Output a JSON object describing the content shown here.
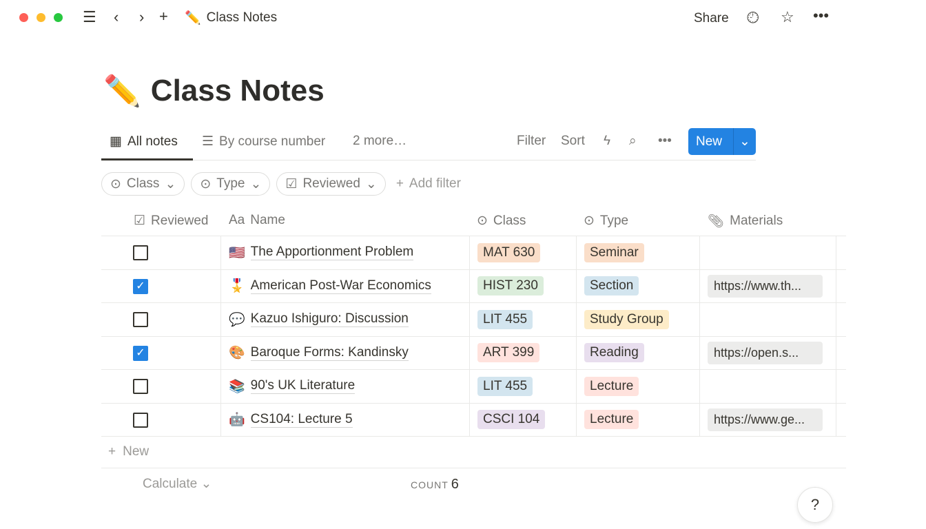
{
  "window": {
    "title": "Class Notes",
    "emoji": "✏️"
  },
  "topbar": {
    "share": "Share"
  },
  "page": {
    "title": "Class Notes",
    "emoji": "✏️"
  },
  "views": {
    "tabs": [
      {
        "label": "All notes"
      },
      {
        "label": "By course number"
      }
    ],
    "more": "2 more…",
    "filter": "Filter",
    "sort": "Sort",
    "new": "New"
  },
  "filters": [
    {
      "label": "Class"
    },
    {
      "label": "Type"
    },
    {
      "label": "Reviewed"
    }
  ],
  "add_filter": "Add filter",
  "columns": {
    "reviewed": "Reviewed",
    "name": "Name",
    "class": "Class",
    "type": "Type",
    "materials": "Materials"
  },
  "rows": [
    {
      "reviewed": false,
      "emoji": "🇺🇸",
      "name": "The Apportionment Problem",
      "class": "MAT 630",
      "class_color": "#fadec9",
      "type": "Seminar",
      "type_color": "#fadec9",
      "materials": ""
    },
    {
      "reviewed": true,
      "emoji": "🎖️",
      "name": "American Post-War Economics",
      "class": "HIST 230",
      "class_color": "#dbeddb",
      "type": "Section",
      "type_color": "#d3e5ef",
      "materials": "https://www.th..."
    },
    {
      "reviewed": false,
      "emoji": "💬",
      "name": "Kazuo Ishiguro: Discussion",
      "class": "LIT 455",
      "class_color": "#d3e5ef",
      "type": "Study Group",
      "type_color": "#fdecc8",
      "materials": ""
    },
    {
      "reviewed": true,
      "emoji": "🎨",
      "name": "Baroque Forms: Kandinsky",
      "class": "ART 399",
      "class_color": "#ffe2dd",
      "type": "Reading",
      "type_color": "#e8deee",
      "materials": "https://open.s..."
    },
    {
      "reviewed": false,
      "emoji": "📚",
      "name": "90's UK Literature",
      "class": "LIT 455",
      "class_color": "#d3e5ef",
      "type": "Lecture",
      "type_color": "#ffe2dd",
      "materials": ""
    },
    {
      "reviewed": false,
      "emoji": "🤖",
      "name": "CS104: Lecture 5",
      "class": "CSCI 104",
      "class_color": "#e8deee",
      "type": "Lecture",
      "type_color": "#ffe2dd",
      "materials": "https://www.ge..."
    }
  ],
  "new_row": "New",
  "footer": {
    "calculate": "Calculate",
    "count_label": "COUNT",
    "count": "6"
  },
  "help": "?"
}
